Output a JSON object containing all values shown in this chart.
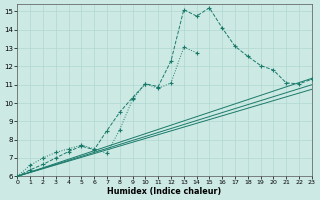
{
  "xlabel": "Humidex (Indice chaleur)",
  "background_color": "#cce9e4",
  "grid_color": "#b0d8d0",
  "line_color": "#1a7a6a",
  "xlim": [
    0,
    23
  ],
  "ylim": [
    6,
    15.4
  ],
  "xticks": [
    0,
    1,
    2,
    3,
    4,
    5,
    6,
    7,
    8,
    9,
    10,
    11,
    12,
    13,
    14,
    15,
    16,
    17,
    18,
    19,
    20,
    21,
    22,
    23
  ],
  "yticks": [
    6,
    7,
    8,
    9,
    10,
    11,
    12,
    13,
    14,
    15
  ],
  "curve1_x": [
    0,
    1,
    2,
    3,
    4,
    5,
    6,
    7,
    8,
    9,
    10,
    11,
    12,
    13,
    14,
    15,
    16,
    17,
    18,
    19,
    20,
    21,
    22,
    23
  ],
  "curve1_y": [
    6.0,
    6.35,
    6.65,
    7.0,
    7.35,
    7.65,
    7.45,
    8.5,
    9.5,
    10.3,
    11.05,
    10.9,
    12.3,
    15.1,
    14.75,
    15.2,
    14.1,
    13.1,
    12.55,
    12.05,
    11.8,
    11.1,
    11.05,
    11.3
  ],
  "curve2_x": [
    0,
    1,
    2,
    3,
    4,
    5,
    6,
    7,
    8,
    9,
    10,
    11,
    12,
    13,
    14
  ],
  "curve2_y": [
    6.0,
    6.6,
    7.0,
    7.3,
    7.5,
    7.7,
    7.5,
    7.25,
    8.55,
    10.2,
    11.05,
    10.8,
    11.1,
    13.05,
    12.75
  ],
  "fan_lines": [
    {
      "x": [
        0,
        23
      ],
      "y": [
        6.0,
        11.35
      ]
    },
    {
      "x": [
        0,
        23
      ],
      "y": [
        6.0,
        11.0
      ]
    },
    {
      "x": [
        0,
        23
      ],
      "y": [
        6.0,
        10.75
      ]
    }
  ]
}
